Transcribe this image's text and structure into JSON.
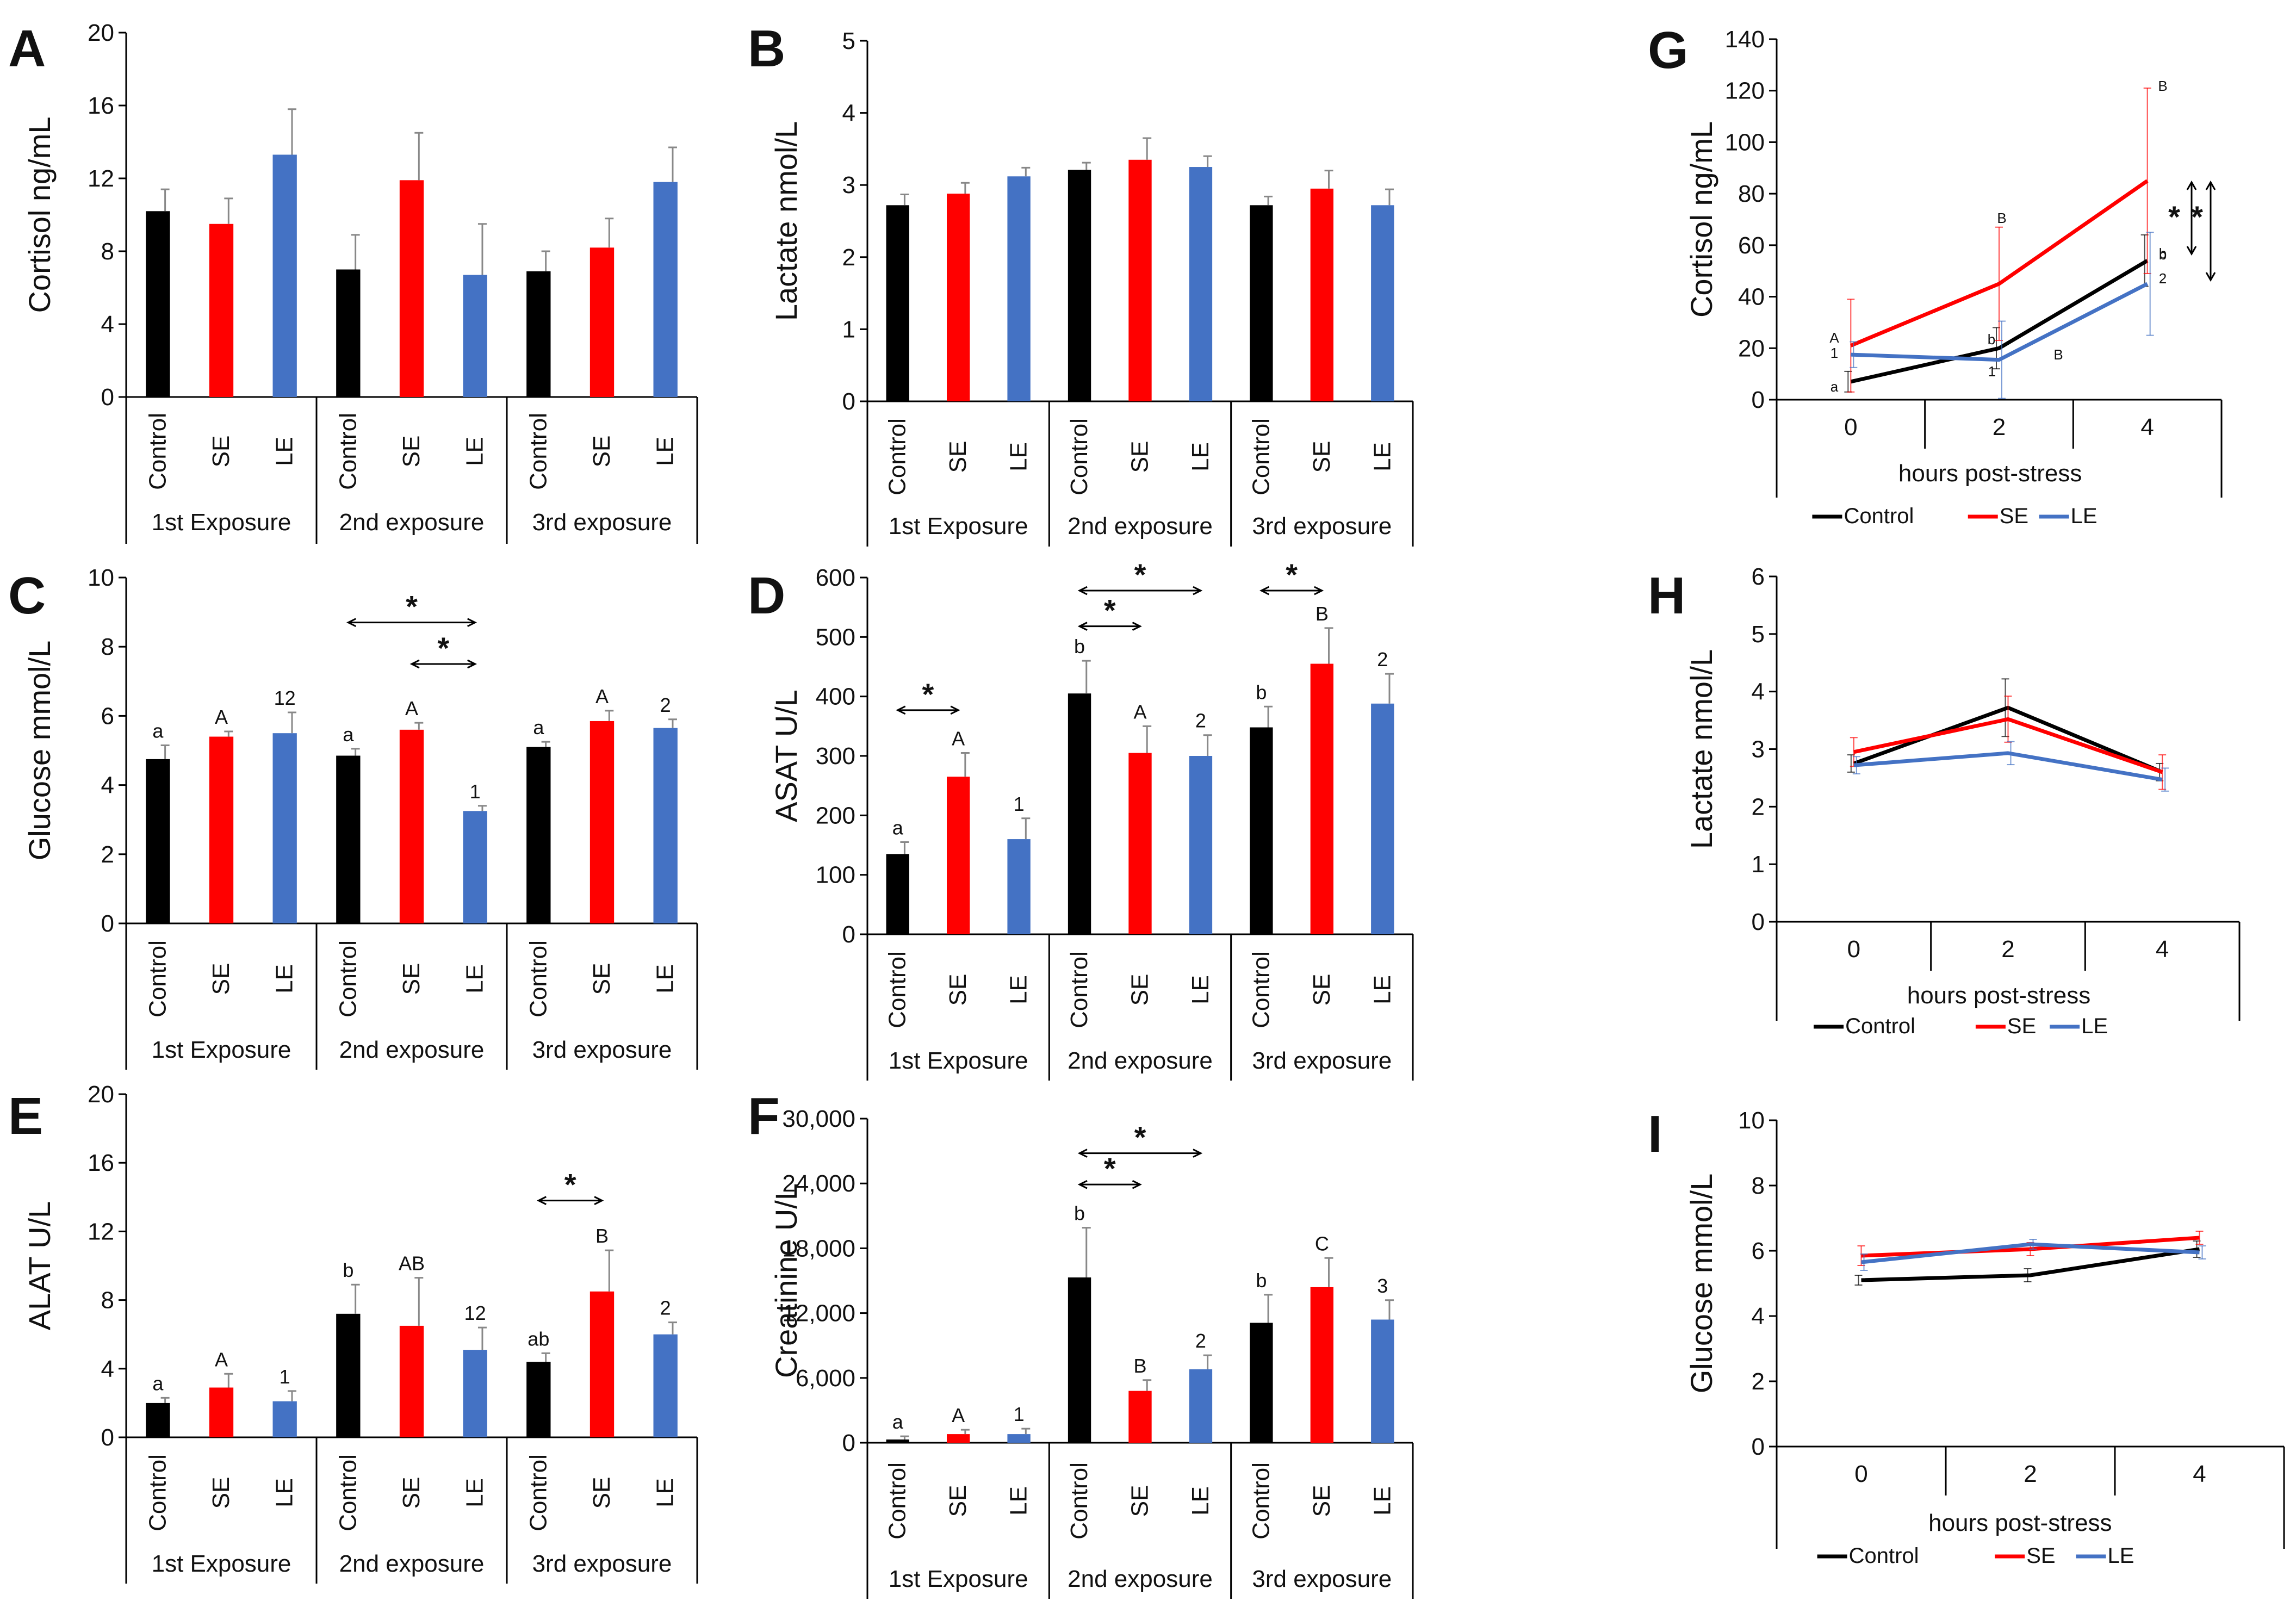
{
  "colors": {
    "control": "#000000",
    "se": "#ff0000",
    "le": "#4472c4"
  },
  "legend": {
    "control": "Control",
    "se": "SE",
    "le": "LE"
  },
  "chart_data": [
    {
      "id": "A",
      "type": "bar",
      "letter": "A",
      "ylabel": "Cortisol ng/mL",
      "ylim": [
        0,
        20
      ],
      "yticks": [
        0,
        4,
        8,
        12,
        16,
        20
      ],
      "ytick_labels": [
        "0",
        "4",
        "8",
        "12",
        "16",
        "20"
      ],
      "groups": [
        "1st Exposure",
        "2nd exposure",
        "3rd exposure"
      ],
      "categories": [
        "Control",
        "SE",
        "LE"
      ],
      "values": [
        [
          10.2,
          9.5,
          13.3
        ],
        [
          7.0,
          11.9,
          6.7
        ],
        [
          6.9,
          8.2,
          11.8
        ]
      ],
      "errors": [
        [
          1.2,
          1.4,
          2.5
        ],
        [
          1.9,
          2.6,
          2.8
        ],
        [
          1.1,
          1.6,
          1.9
        ]
      ],
      "labels": [
        [
          "",
          "",
          ""
        ],
        [
          "",
          "",
          ""
        ],
        [
          "",
          "",
          ""
        ]
      ],
      "brackets": []
    },
    {
      "id": "B",
      "type": "bar",
      "letter": "B",
      "ylabel": "Lactate nmol/L",
      "ylim": [
        0,
        5
      ],
      "yticks": [
        0,
        1,
        2,
        3,
        4,
        5
      ],
      "ytick_labels": [
        "0",
        "1",
        "2",
        "3",
        "4",
        "5"
      ],
      "groups": [
        "1st Exposure",
        "2nd exposure",
        "3rd exposure"
      ],
      "categories": [
        "Control",
        "SE",
        "LE"
      ],
      "values": [
        [
          2.72,
          2.88,
          3.12
        ],
        [
          3.21,
          3.35,
          3.25
        ],
        [
          2.72,
          2.95,
          2.72
        ]
      ],
      "errors": [
        [
          0.15,
          0.15,
          0.12
        ],
        [
          0.1,
          0.3,
          0.15
        ],
        [
          0.12,
          0.25,
          0.22
        ]
      ],
      "labels": [
        [
          "",
          "",
          ""
        ],
        [
          "",
          "",
          ""
        ],
        [
          "",
          "",
          ""
        ]
      ],
      "brackets": []
    },
    {
      "id": "C",
      "type": "bar",
      "letter": "C",
      "ylabel": "Glucose mmol/L",
      "ylim": [
        0,
        10
      ],
      "yticks": [
        0,
        2,
        4,
        6,
        8,
        10
      ],
      "ytick_labels": [
        "0",
        "2",
        "4",
        "6",
        "8",
        "10"
      ],
      "groups": [
        "1st Exposure",
        "2nd exposure",
        "3rd exposure"
      ],
      "categories": [
        "Control",
        "SE",
        "LE"
      ],
      "values": [
        [
          4.75,
          5.4,
          5.5
        ],
        [
          4.85,
          5.6,
          3.25
        ],
        [
          5.1,
          5.85,
          5.65
        ]
      ],
      "errors": [
        [
          0.4,
          0.15,
          0.6
        ],
        [
          0.2,
          0.2,
          0.15
        ],
        [
          0.15,
          0.3,
          0.25
        ]
      ],
      "labels": [
        [
          "a",
          "A",
          "12"
        ],
        [
          "a",
          "A",
          "1"
        ],
        [
          "a",
          "A",
          "2"
        ]
      ],
      "brackets": [
        {
          "from": [
            1,
            0
          ],
          "to": [
            1,
            2
          ],
          "y": 8.7,
          "label": "*"
        },
        {
          "from": [
            1,
            1
          ],
          "to": [
            1,
            2
          ],
          "y": 7.5,
          "label": "*"
        }
      ]
    },
    {
      "id": "D",
      "type": "bar",
      "letter": "D",
      "ylabel": "ASAT U/L",
      "ylim": [
        0,
        600
      ],
      "yticks": [
        0,
        100,
        200,
        300,
        400,
        500,
        600
      ],
      "ytick_labels": [
        "0",
        "100",
        "200",
        "300",
        "400",
        "500",
        "600"
      ],
      "groups": [
        "1st Exposure",
        "2nd exposure",
        "3rd exposure"
      ],
      "categories": [
        "Control",
        "SE",
        "LE"
      ],
      "values": [
        [
          135,
          265,
          160
        ],
        [
          405,
          305,
          300
        ],
        [
          348,
          455,
          388
        ]
      ],
      "errors": [
        [
          20,
          40,
          35
        ],
        [
          55,
          45,
          35
        ],
        [
          35,
          60,
          50
        ]
      ],
      "labels": [
        [
          "a",
          "A",
          "1"
        ],
        [
          "b",
          "A",
          "2"
        ],
        [
          "b",
          "B",
          "2"
        ]
      ],
      "brackets": [
        {
          "from": [
            0,
            0
          ],
          "to": [
            0,
            1
          ],
          "y": 377,
          "label": "*"
        },
        {
          "from": [
            1,
            0
          ],
          "to": [
            1,
            1
          ],
          "y": 518,
          "label": "*"
        },
        {
          "from": [
            1,
            0
          ],
          "to": [
            1,
            2
          ],
          "y": 578,
          "label": "*"
        },
        {
          "from": [
            2,
            0
          ],
          "to": [
            2,
            1
          ],
          "y": 578,
          "label": "*"
        }
      ]
    },
    {
      "id": "E",
      "type": "bar",
      "letter": "E",
      "ylabel": "ALAT U/L",
      "ylim": [
        0,
        20
      ],
      "yticks": [
        0,
        4,
        8,
        12,
        16,
        20
      ],
      "ytick_labels": [
        "0",
        "4",
        "8",
        "12",
        "16",
        "20"
      ],
      "groups": [
        "1st Exposure",
        "2nd exposure",
        "3rd exposure"
      ],
      "categories": [
        "Control",
        "SE",
        "LE"
      ],
      "values": [
        [
          2.0,
          2.9,
          2.1
        ],
        [
          7.2,
          6.5,
          5.1
        ],
        [
          4.4,
          8.5,
          6.0
        ]
      ],
      "errors": [
        [
          0.3,
          0.8,
          0.6
        ],
        [
          1.7,
          2.8,
          1.3
        ],
        [
          0.5,
          2.4,
          0.7
        ]
      ],
      "labels": [
        [
          "a",
          "A",
          "1"
        ],
        [
          "b",
          "AB",
          "12"
        ],
        [
          "ab",
          "B",
          "2"
        ]
      ],
      "brackets": [
        {
          "from": [
            2,
            0
          ],
          "to": [
            2,
            1
          ],
          "y": 13.8,
          "label": "*"
        }
      ]
    },
    {
      "id": "F",
      "type": "bar",
      "letter": "F",
      "ylabel": "Creatinine U/L",
      "ylim": [
        0,
        30000
      ],
      "yticks": [
        0,
        6000,
        12000,
        18000,
        24000,
        30000
      ],
      "ytick_labels": [
        "0",
        "6,000",
        "12,000",
        "18,000",
        "24,000",
        "30,000"
      ],
      "groups": [
        "1st Exposure",
        "2nd exposure",
        "3rd exposure"
      ],
      "categories": [
        "Control",
        "SE",
        "LE"
      ],
      "values": [
        [
          300,
          800,
          800
        ],
        [
          15300,
          4800,
          6800
        ],
        [
          11100,
          14400,
          11400
        ]
      ],
      "errors": [
        [
          300,
          400,
          500
        ],
        [
          4600,
          1000,
          1300
        ],
        [
          2600,
          2700,
          1800
        ]
      ],
      "labels": [
        [
          "a",
          "A",
          "1"
        ],
        [
          "b",
          "B",
          "2"
        ],
        [
          "b",
          "C",
          "3"
        ]
      ],
      "brackets": [
        {
          "from": [
            1,
            0
          ],
          "to": [
            1,
            1
          ],
          "y": 23900,
          "label": "*"
        },
        {
          "from": [
            1,
            0
          ],
          "to": [
            1,
            2
          ],
          "y": 26800,
          "label": "*"
        }
      ]
    },
    {
      "id": "G",
      "type": "line",
      "letter": "G",
      "ylabel": "Cortisol ng/mL",
      "xlabel": "hours post-stress",
      "ylim": [
        0,
        140
      ],
      "yticks": [
        0,
        20,
        40,
        60,
        80,
        100,
        120,
        140
      ],
      "ytick_labels": [
        "0",
        "20",
        "40",
        "60",
        "80",
        "100",
        "120",
        "140"
      ],
      "x": [
        "0",
        "2",
        "4"
      ],
      "series": [
        {
          "name": "Control",
          "key": "control",
          "values": [
            7,
            20,
            54
          ],
          "errors": [
            4,
            8,
            10
          ]
        },
        {
          "name": "SE",
          "key": "se",
          "values": [
            21,
            45,
            85
          ],
          "errors": [
            18,
            22,
            36
          ]
        },
        {
          "name": "LE",
          "key": "le",
          "values": [
            17.5,
            15.5,
            45
          ],
          "errors": [
            5,
            15,
            20
          ]
        }
      ],
      "annotations": [
        "a",
        "A",
        "1",
        "b",
        "B",
        "b",
        "1",
        "B",
        "B",
        "b",
        "2"
      ],
      "sig": [
        "*",
        "*"
      ]
    },
    {
      "id": "H",
      "type": "line",
      "letter": "H",
      "ylabel": "Lactate nmol/L",
      "xlabel": "hours post-stress",
      "ylim": [
        0,
        6
      ],
      "yticks": [
        0,
        1,
        2,
        3,
        4,
        5,
        6
      ],
      "ytick_labels": [
        "0",
        "1",
        "2",
        "3",
        "4",
        "5",
        "6"
      ],
      "x": [
        "0",
        "2",
        "4"
      ],
      "series": [
        {
          "name": "Control",
          "key": "control",
          "values": [
            2.75,
            3.72,
            2.6
          ],
          "errors": [
            0.15,
            0.5,
            0.15
          ]
        },
        {
          "name": "SE",
          "key": "se",
          "values": [
            2.95,
            3.52,
            2.6
          ],
          "errors": [
            0.25,
            0.4,
            0.3
          ]
        },
        {
          "name": "LE",
          "key": "le",
          "values": [
            2.72,
            2.93,
            2.47
          ],
          "errors": [
            0.15,
            0.2,
            0.2
          ]
        }
      ]
    },
    {
      "id": "I",
      "type": "line",
      "letter": "I",
      "ylabel": "Glucose mmol/L",
      "xlabel": "hours post-stress",
      "ylim": [
        0,
        10
      ],
      "yticks": [
        0,
        2,
        4,
        6,
        8,
        10
      ],
      "ytick_labels": [
        "0",
        "2",
        "4",
        "6",
        "8",
        "10"
      ],
      "x": [
        "0",
        "2",
        "4"
      ],
      "series": [
        {
          "name": "Control",
          "key": "control",
          "values": [
            5.1,
            5.25,
            6.05
          ],
          "errors": [
            0.15,
            0.2,
            0.25
          ]
        },
        {
          "name": "SE",
          "key": "se",
          "values": [
            5.85,
            6.05,
            6.4
          ],
          "errors": [
            0.3,
            0.2,
            0.2
          ]
        },
        {
          "name": "LE",
          "key": "le",
          "values": [
            5.65,
            6.2,
            5.95
          ],
          "errors": [
            0.25,
            0.15,
            0.2
          ]
        }
      ]
    }
  ]
}
